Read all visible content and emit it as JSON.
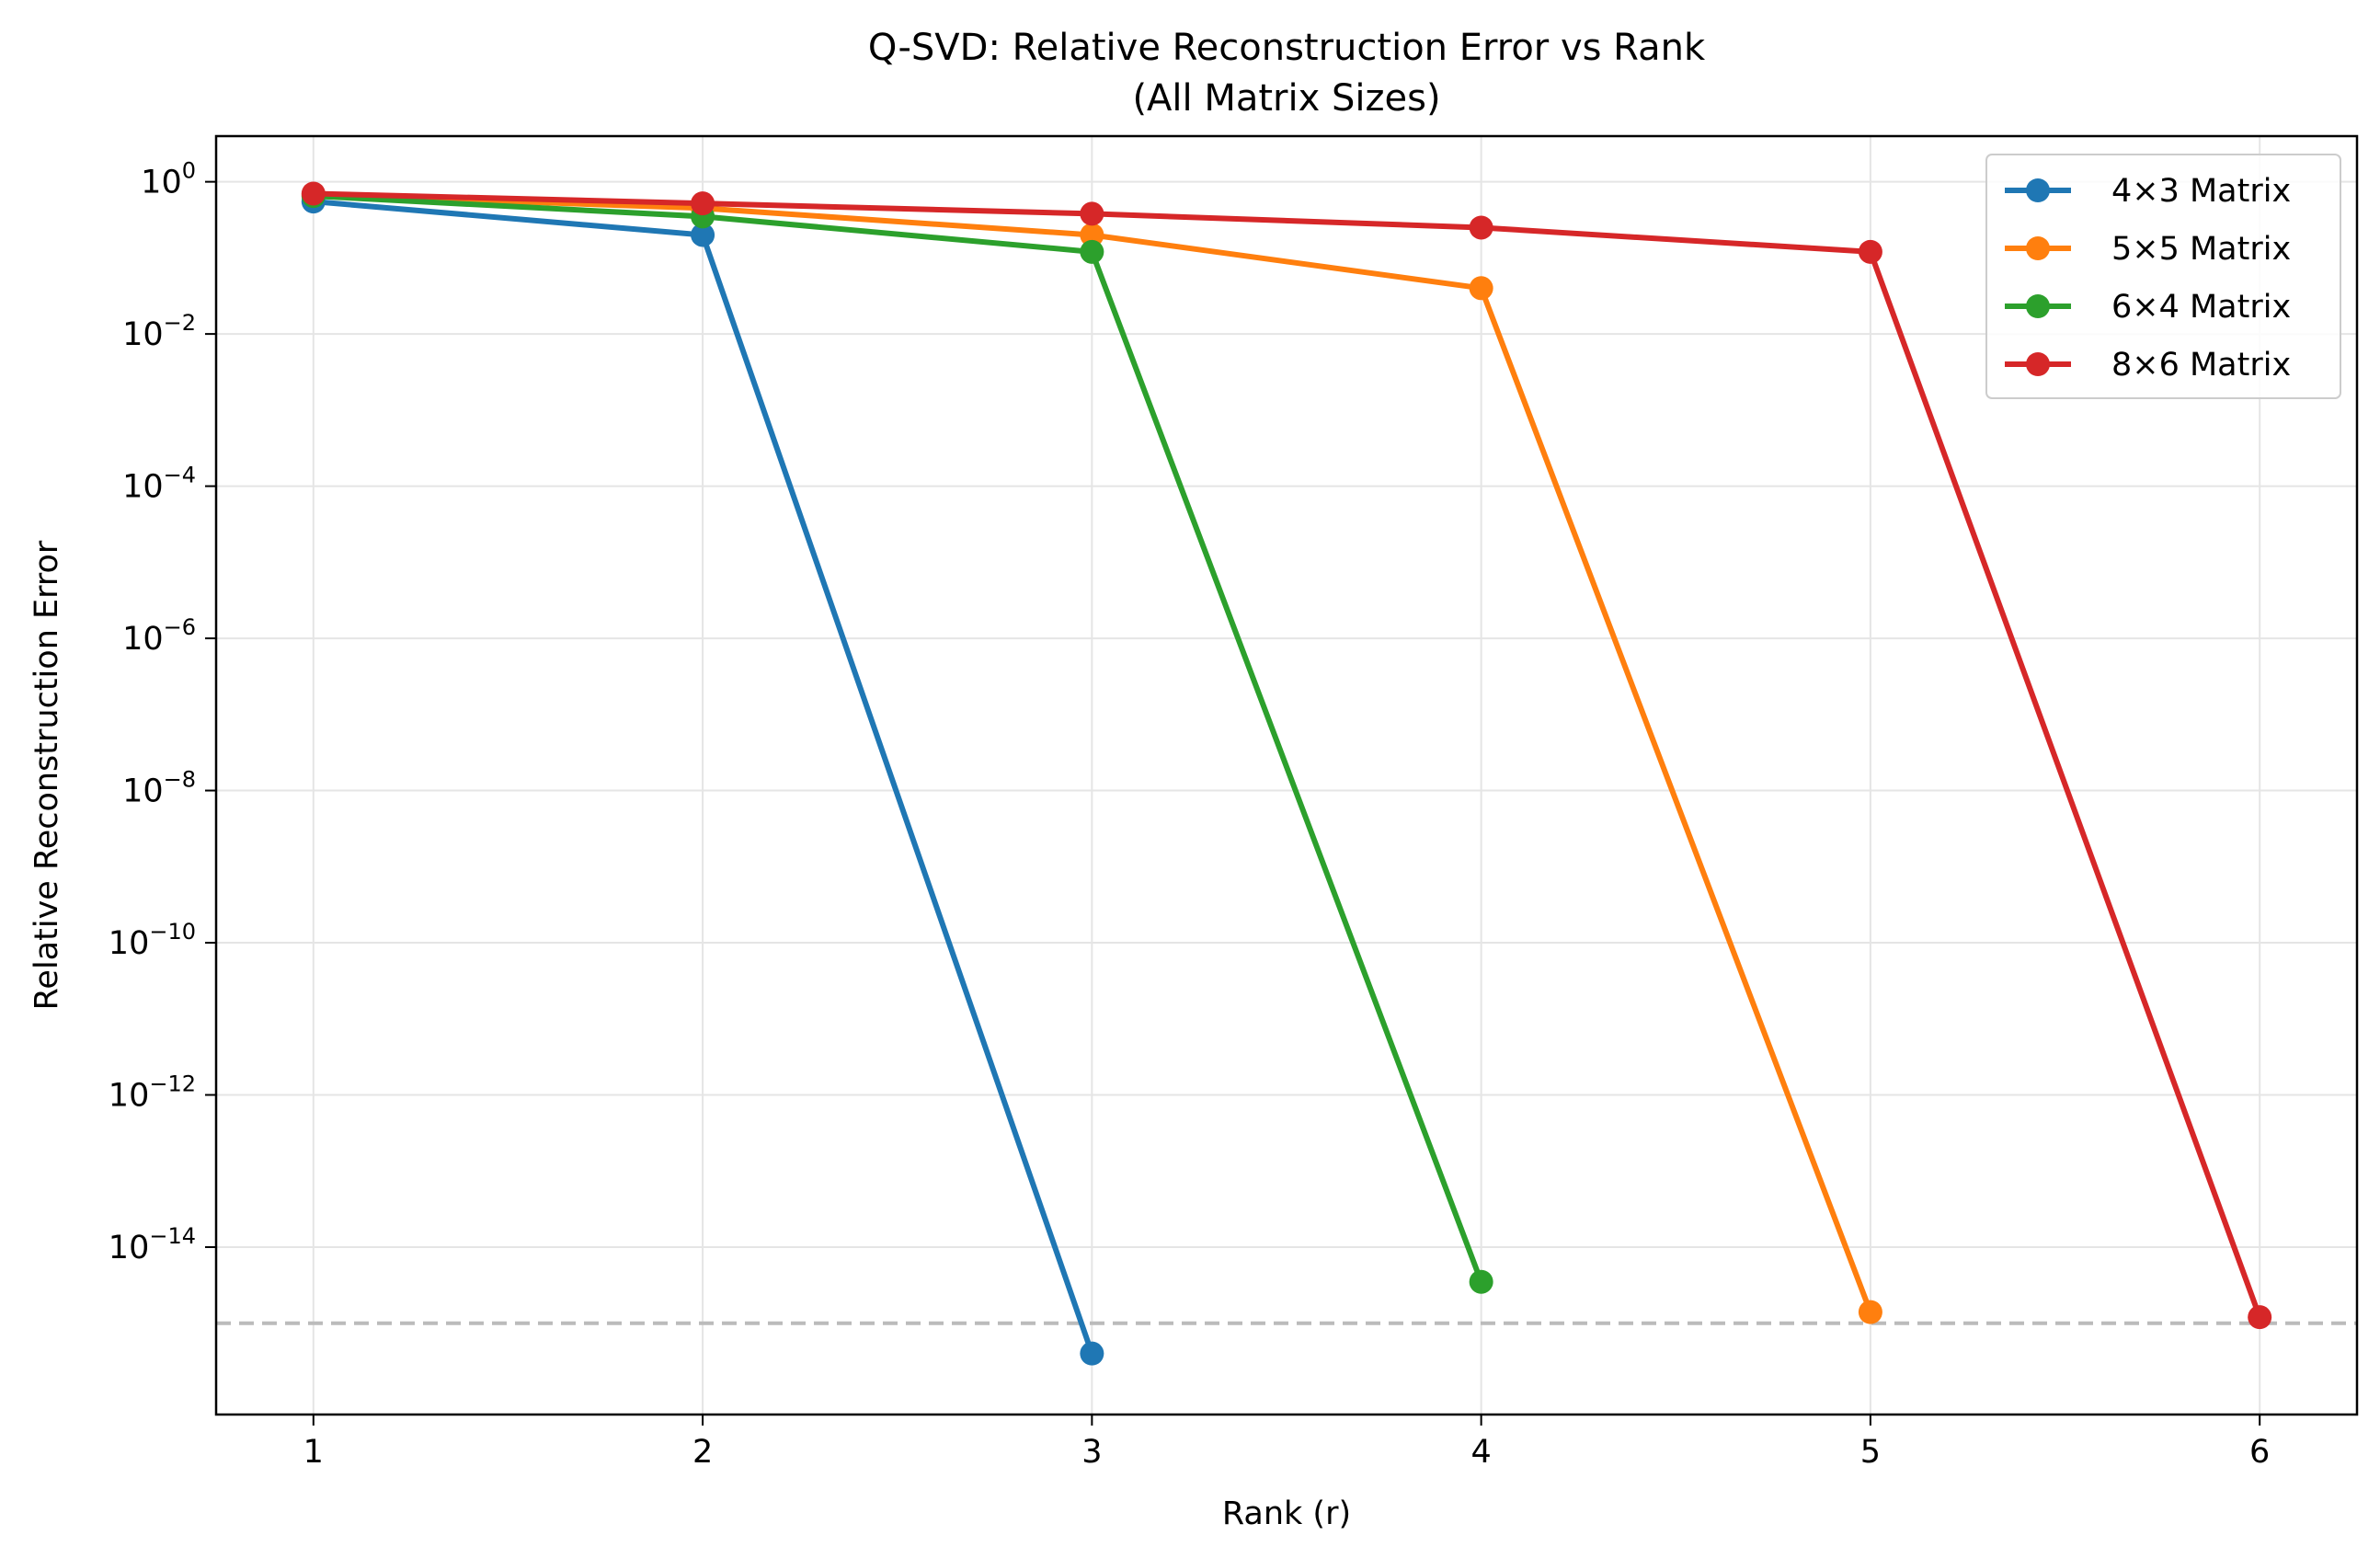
{
  "chart_data": {
    "type": "line",
    "title": "Q-SVD: Relative Reconstruction Error vs Rank",
    "subtitle": "(All Matrix Sizes)",
    "xlabel": "Rank (r)",
    "ylabel": "Relative Reconstruction Error",
    "yscale": "log",
    "xlim": [
      0.75,
      6.25
    ],
    "ylim_log10": [
      -16.2,
      0.6
    ],
    "x_ticks": [
      1,
      2,
      3,
      4,
      5,
      6
    ],
    "y_ticks": [
      {
        "base": "10",
        "exp": "0"
      },
      {
        "base": "10",
        "exp": "−2"
      },
      {
        "base": "10",
        "exp": "−4"
      },
      {
        "base": "10",
        "exp": "−6"
      },
      {
        "base": "10",
        "exp": "−8"
      },
      {
        "base": "10",
        "exp": "−10"
      },
      {
        "base": "10",
        "exp": "−12"
      },
      {
        "base": "10",
        "exp": "−14"
      }
    ],
    "y_tick_values_log10": [
      0,
      -2,
      -4,
      -6,
      -8,
      -10,
      -12,
      -14
    ],
    "grid": true,
    "legend_position": "top-right",
    "reference_line": {
      "y": 1e-15,
      "style": "dashed",
      "color": "#bbbbbb"
    },
    "series": [
      {
        "name": "4×3 Matrix",
        "color": "#1f77b4",
        "x": [
          1,
          2,
          3
        ],
        "y": [
          0.55,
          0.2,
          4e-16
        ]
      },
      {
        "name": "5×5 Matrix",
        "color": "#ff7f0e",
        "x": [
          1,
          2,
          3,
          4,
          5
        ],
        "y": [
          0.68,
          0.45,
          0.2,
          0.04,
          1.4e-15
        ]
      },
      {
        "name": "6×4 Matrix",
        "color": "#2ca02c",
        "x": [
          1,
          2,
          3,
          4
        ],
        "y": [
          0.65,
          0.35,
          0.12,
          3.5e-15
        ]
      },
      {
        "name": "8×6 Matrix",
        "color": "#d62728",
        "x": [
          1,
          2,
          3,
          4,
          5,
          6
        ],
        "y": [
          0.7,
          0.52,
          0.38,
          0.25,
          0.12,
          1.2e-15
        ]
      }
    ]
  }
}
